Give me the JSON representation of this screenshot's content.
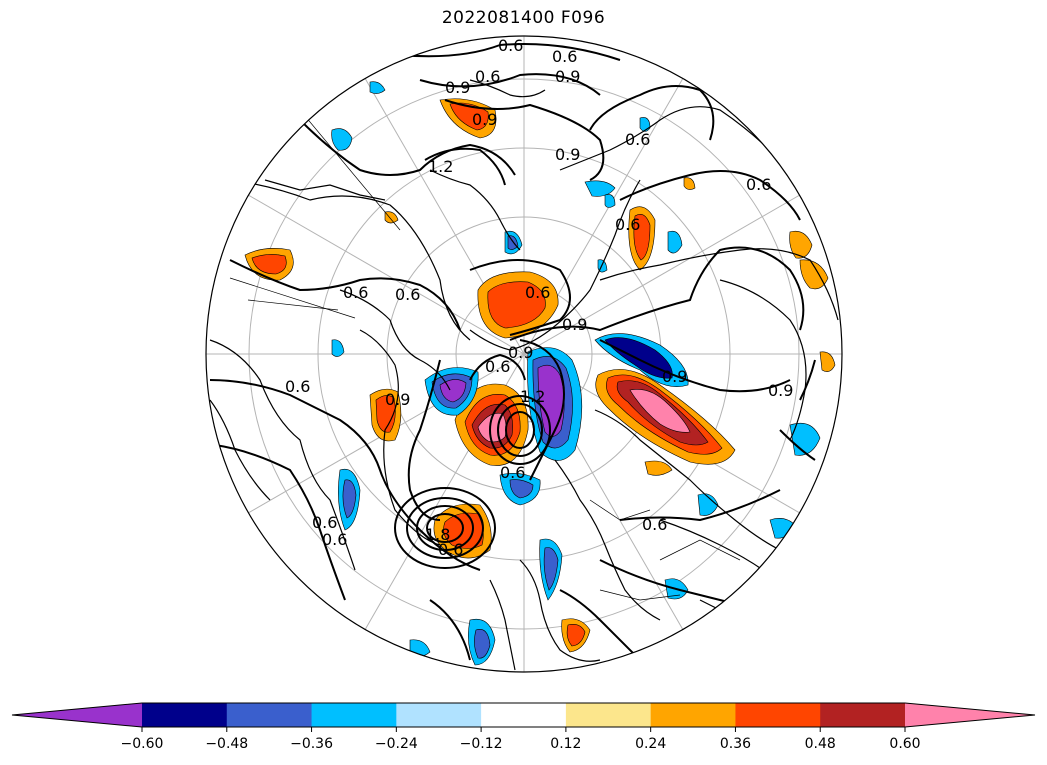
{
  "title": "2022081400 F096",
  "colorbar": {
    "levels": [
      "−0.60",
      "−0.48",
      "−0.36",
      "−0.24",
      "−0.12",
      "0.12",
      "0.24",
      "0.36",
      "0.48",
      "0.60"
    ],
    "colors": [
      "#9932cc",
      "#00008b",
      "#3a5fcd",
      "#00bfff",
      "#b0e2ff",
      "#ffffff",
      "#fce68c",
      "#ffa500",
      "#ff4500",
      "#b22222",
      "#ff82ab"
    ],
    "extend": "both"
  },
  "contour_labels": [
    "0.6",
    "0.6",
    "0.6",
    "0.9",
    "0.9",
    "0.9",
    "0.9",
    "0.6",
    "1.2",
    "0.6",
    "0.6",
    "0.6",
    "0.9",
    "0.6",
    "0.9",
    "0.6",
    "0.9",
    "1.2",
    "0.6",
    "0.9",
    "0.6",
    "1.8",
    "0.6",
    "0.9",
    "0.6",
    "0.6",
    "0.6",
    "0.6"
  ]
}
